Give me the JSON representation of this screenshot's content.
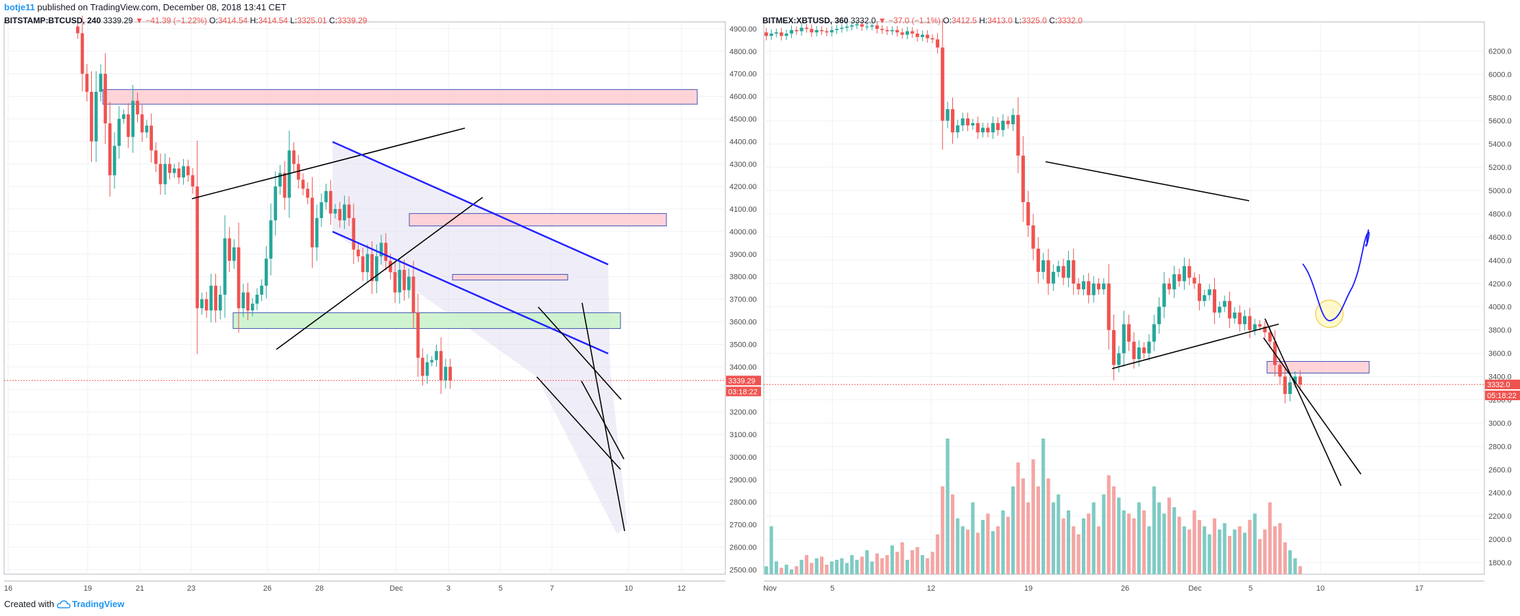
{
  "header": {
    "author": "botje11",
    "text": " published on TradingView.com, December 08, 2018 13:41 CET"
  },
  "footer": {
    "created_with": "Created with",
    "brand": "TradingView"
  },
  "colors": {
    "up": "#26a69a",
    "down": "#ef5350",
    "vol_up": "#7fcbc4",
    "vol_down": "#f5a5a3",
    "grid": "#eef1f4",
    "border": "#b2b5be",
    "resistance_fill": "#ffcdd2",
    "support_fill": "#c8f2c8",
    "zone_border": "#3f51b5",
    "channel_line": "#2323ff",
    "trend_line": "#000000",
    "projection": "#1a1aff",
    "circle": "#fff59d",
    "price_label_bg": "#ef5350"
  },
  "chart_data": [
    {
      "type": "candlestick",
      "symbol": "BITSTAMP:BTCUSD, 240",
      "legend": {
        "symbol": "BITSTAMP:BTCUSD, 240",
        "last": "3339.29",
        "change": "▼ −41.39 (−1.22%)",
        "open": "3414.54",
        "high": "3414.54",
        "low": "3325.01",
        "close": "3339.29"
      },
      "ylim": [
        2480,
        4930
      ],
      "y_ticks": [
        "4900.00",
        "4800.00",
        "4700.00",
        "4600.00",
        "4500.00",
        "4400.00",
        "4300.00",
        "4200.00",
        "4100.00",
        "4000.00",
        "3900.00",
        "3800.00",
        "3700.00",
        "3600.00",
        "3500.00",
        "3400.00",
        "3300.00",
        "3200.00",
        "3100.00",
        "3000.00",
        "2900.00",
        "2800.00",
        "2700.00",
        "2600.00",
        "2500.00"
      ],
      "x_ticks": [
        "16",
        "19",
        "21",
        "23",
        "26",
        "28",
        "Dec",
        "3",
        "5",
        "7",
        "10",
        "12"
      ],
      "last_price_label": "3339.29",
      "countdown_label": "03:18:22",
      "last_price": 3339.29,
      "candles_close": [
        4880,
        4700,
        4620,
        4400,
        4620,
        4700,
        4480,
        4250,
        4380,
        4500,
        4520,
        4420,
        4580,
        4520,
        4440,
        4470,
        4360,
        4300,
        4210,
        4300,
        4260,
        4280,
        4240,
        4290,
        4250,
        4200,
        3660,
        3700,
        3650,
        3760,
        3650,
        3720,
        3970,
        3870,
        3930,
        3660,
        3730,
        3650,
        3680,
        3720,
        3760,
        3880,
        4050,
        4200,
        4260,
        4150,
        4360,
        4300,
        4230,
        4190,
        4150,
        3930,
        4060,
        4130,
        4180,
        4080,
        4100,
        4050,
        4120,
        4060,
        3920,
        3890,
        3820,
        3900,
        3780,
        3890,
        3950,
        3870,
        3820,
        3730,
        3830,
        3740,
        3800,
        3640,
        3440,
        3360,
        3420,
        3430,
        3470,
        3340,
        3400,
        3339
      ],
      "volume": [],
      "zones": [
        {
          "kind": "resistance",
          "y_top": 4630,
          "y_bottom": 4565
        },
        {
          "kind": "resistance",
          "y_top": 4080,
          "y_bottom": 4025
        },
        {
          "kind": "resistance",
          "y_top": 3810,
          "y_bottom": 3785
        },
        {
          "kind": "support",
          "y_top": 3640,
          "y_bottom": 3570
        }
      ]
    },
    {
      "type": "candlestick",
      "symbol": "BITMEX:XBTUSD, 360",
      "legend": {
        "symbol": "BITMEX:XBTUSD, 360",
        "last": "3332.0",
        "change": "▼ −37.0 (−1.1%)",
        "open": "3412.5",
        "high": "3413.0",
        "low": "3325.0",
        "close": "3332.0"
      },
      "ylim": [
        1700,
        6450
      ],
      "y_ticks": [
        "6200.0",
        "6000.0",
        "5800.0",
        "5600.0",
        "5400.0",
        "5200.0",
        "5000.0",
        "4800.0",
        "4600.0",
        "4400.0",
        "4200.0",
        "4000.0",
        "3800.0",
        "3600.0",
        "3400.0",
        "3200.0",
        "3000.0",
        "2800.0",
        "2600.0",
        "2400.0",
        "2200.0",
        "2000.0",
        "1800.0"
      ],
      "x_ticks": [
        "Nov",
        "5",
        "12",
        "19",
        "26",
        "Dec",
        "5",
        "10",
        "17"
      ],
      "last_price_label": "3332.0",
      "countdown_label": "05:18:22",
      "last_price": 3332.0,
      "candles_close": [
        6330,
        6350,
        6360,
        6330,
        6350,
        6380,
        6370,
        6400,
        6390,
        6360,
        6380,
        6370,
        6360,
        6380,
        6390,
        6400,
        6410,
        6420,
        6430,
        6410,
        6410,
        6420,
        6390,
        6380,
        6370,
        6380,
        6360,
        6340,
        6370,
        6350,
        6320,
        6340,
        6310,
        6300,
        6230,
        5600,
        5700,
        5500,
        5560,
        5620,
        5560,
        5580,
        5500,
        5540,
        5500,
        5580,
        5520,
        5600,
        5570,
        5650,
        5300,
        4900,
        4700,
        4500,
        4300,
        4400,
        4200,
        4300,
        4350,
        4250,
        4400,
        4200,
        4150,
        4220,
        4100,
        4200,
        4150,
        4200,
        3800,
        3500,
        3600,
        3850,
        3700,
        3550,
        3650,
        3600,
        3700,
        3850,
        4000,
        4200,
        4150,
        4280,
        4220,
        4350,
        4250,
        4200,
        4050,
        4100,
        4150,
        3950,
        4000,
        4050,
        3900,
        3950,
        3850,
        3920,
        3800,
        3850,
        3830,
        3780,
        3700,
        3500,
        3400,
        3250,
        3350,
        3400,
        3330
      ],
      "volume": [
        5,
        30,
        8,
        4,
        6,
        3,
        5,
        9,
        12,
        7,
        10,
        11,
        6,
        8,
        9,
        10,
        7,
        12,
        9,
        11,
        15,
        8,
        13,
        10,
        12,
        18,
        14,
        20,
        9,
        15,
        17,
        12,
        10,
        14,
        25,
        55,
        85,
        50,
        35,
        30,
        28,
        45,
        26,
        34,
        38,
        27,
        30,
        40,
        36,
        55,
        70,
        60,
        45,
        72,
        55,
        85,
        60,
        45,
        50,
        35,
        40,
        30,
        25,
        35,
        38,
        45,
        30,
        50,
        62,
        55,
        48,
        40,
        38,
        35,
        45,
        40,
        30,
        55,
        45,
        38,
        48,
        42,
        36,
        30,
        28,
        40,
        34,
        30,
        25,
        35,
        28,
        32,
        24,
        28,
        30,
        26,
        34,
        38,
        22,
        28,
        45,
        30,
        32,
        20,
        15,
        10,
        5
      ],
      "zones": [
        {
          "kind": "resistance",
          "y_top": 3530,
          "y_bottom": 3430
        }
      ]
    }
  ]
}
